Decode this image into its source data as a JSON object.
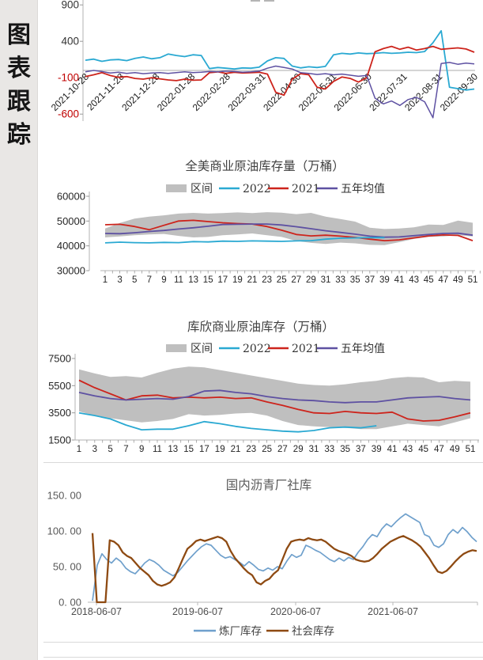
{
  "sidebar": {
    "title": "图表跟踪",
    "chars": [
      "图",
      "表",
      "跟",
      "踪"
    ]
  },
  "colors": {
    "band": "#bfbfbf",
    "cyan": "#2aa9d2",
    "red": "#cd241c",
    "purple": "#5e51a2",
    "blue": "#6fa0cc",
    "brown": "#8e4a12",
    "axis": "#b3b3b3",
    "tick_text": "#262626",
    "neg_tick_text": "#c00000",
    "gray_text": "#595959"
  },
  "chart_data": [
    {
      "type": "line",
      "title": "",
      "ylim": [
        -600,
        900
      ],
      "ytick_values": [
        900,
        400,
        -100,
        -600
      ],
      "ytick_labels": [
        "900",
        "400",
        "-100",
        "-600"
      ],
      "ytick_colors": [
        "#333333",
        "#333333",
        "#c00000",
        "#c00000"
      ],
      "baseline": 0,
      "xtick_labels": [
        "2021-10-28",
        "2021-11-28",
        "2021-12-28",
        "2022-01-28",
        "2022-02-28",
        "2022-03-31",
        "2022-04-30",
        "2022-05-31",
        "2022-06-30",
        "2022-07-31",
        "2022-08-31",
        "2022-09-30"
      ],
      "series": [
        {
          "name": "series-cyan",
          "color": "#2aa9d2",
          "width": 1.8,
          "values": [
            140,
            155,
            125,
            145,
            150,
            135,
            165,
            185,
            160,
            175,
            225,
            205,
            190,
            215,
            205,
            25,
            40,
            30,
            20,
            35,
            30,
            45,
            130,
            175,
            165,
            60,
            35,
            50,
            40,
            55,
            215,
            235,
            225,
            240,
            230,
            235,
            245,
            235,
            240,
            250,
            245,
            260,
            380,
            545,
            -230,
            -250,
            -270,
            -255
          ]
        },
        {
          "name": "series-red",
          "color": "#cd241c",
          "width": 1.8,
          "values": [
            -85,
            -60,
            -30,
            -70,
            -95,
            -85,
            -110,
            -120,
            -100,
            -115,
            -130,
            -140,
            -120,
            -135,
            -130,
            -30,
            -20,
            -40,
            -25,
            -35,
            -30,
            -25,
            -50,
            -300,
            -340,
            -120,
            -45,
            -60,
            -230,
            -255,
            -150,
            -90,
            -110,
            -160,
            -100,
            255,
            300,
            330,
            290,
            320,
            280,
            300,
            330,
            290,
            300,
            310,
            295,
            250
          ]
        },
        {
          "name": "series-purple",
          "color": "#5e51a2",
          "width": 1.5,
          "values": [
            -20,
            0,
            -15,
            -35,
            -25,
            -40,
            -30,
            -45,
            -35,
            -30,
            -40,
            -30,
            -20,
            -30,
            -25,
            -15,
            -20,
            -10,
            -15,
            -25,
            -20,
            -10,
            30,
            60,
            40,
            20,
            -30,
            -40,
            -55,
            -45,
            -60,
            -50,
            -65,
            -80,
            -70,
            -380,
            -460,
            -420,
            -480,
            -400,
            -370,
            -430,
            -650,
            95,
            110,
            85,
            100,
            90
          ]
        }
      ]
    },
    {
      "type": "band+line",
      "title": "全美商业原油库存量（万桶）",
      "legend": [
        "区间",
        "2022",
        "2021",
        "五年均值"
      ],
      "ylim": [
        30000,
        60000
      ],
      "ytick_values": [
        60000,
        50000,
        40000,
        30000
      ],
      "ytick_labels": [
        "60000",
        "50000",
        "40000",
        "30000"
      ],
      "xtick_labels": [
        "1",
        "3",
        "5",
        "7",
        "9",
        "11",
        "13",
        "15",
        "17",
        "19",
        "21",
        "23",
        "25",
        "27",
        "29",
        "31",
        "33",
        "35",
        "37",
        "39",
        "41",
        "43",
        "45",
        "47",
        "49",
        "51"
      ],
      "band": {
        "name": "区间",
        "color": "#bfbfbf",
        "upper": [
          47000,
          49200,
          51000,
          51800,
          52300,
          53000,
          53300,
          53000,
          53200,
          53500,
          53200,
          53600,
          53400,
          52800,
          53300,
          51800,
          50800,
          49800,
          47300,
          46800,
          47000,
          47500,
          48600,
          48400,
          50200,
          49300
        ],
        "lower": [
          43400,
          43800,
          44300,
          44600,
          44800,
          44000,
          43400,
          43600,
          44300,
          44600,
          45000,
          44300,
          43600,
          42000,
          41200,
          40800,
          41300,
          41000,
          40400,
          40300,
          41500,
          42800,
          43600,
          43800,
          44300,
          43800
        ]
      },
      "series": [
        {
          "name": "2021",
          "color": "#cd241c",
          "width": 1.8,
          "values": [
            48500,
            48700,
            47800,
            46500,
            48300,
            50000,
            50300,
            49800,
            49300,
            49000,
            48800,
            47800,
            46300,
            44600,
            44000,
            44300,
            43900,
            43400,
            42700,
            42100,
            42400,
            43200,
            44000,
            44400,
            44200,
            42100
          ]
        },
        {
          "name": "五年均值",
          "color": "#5e51a2",
          "width": 1.8,
          "values": [
            45000,
            44900,
            45300,
            45800,
            46200,
            46800,
            47300,
            47900,
            48600,
            48700,
            48800,
            48800,
            48400,
            47700,
            46900,
            46100,
            45400,
            44700,
            43900,
            43500,
            43600,
            44100,
            44600,
            45000,
            45100,
            44300
          ]
        },
        {
          "name": "2022",
          "color": "#2aa9d2",
          "width": 1.8,
          "values": [
            41200,
            41500,
            41300,
            41200,
            41400,
            41300,
            41700,
            41600,
            41900,
            41800,
            42000,
            41900,
            41800,
            42000,
            42100,
            42700,
            43100,
            43200,
            43300,
            43300,
            null,
            null,
            null,
            null,
            null,
            null
          ]
        }
      ]
    },
    {
      "type": "band+line",
      "title": "库欣商业原油库存（万桶）",
      "legend": [
        "区间",
        "2022",
        "2021",
        "五年均值"
      ],
      "ylim": [
        1500,
        7500
      ],
      "ytick_values": [
        7500,
        5500,
        3500,
        1500
      ],
      "ytick_labels": [
        "7500",
        "5500",
        "3500",
        "1500"
      ],
      "xtick_labels": [
        "1",
        "3",
        "5",
        "7",
        "9",
        "11",
        "13",
        "15",
        "17",
        "19",
        "21",
        "23",
        "25",
        "27",
        "29",
        "31",
        "33",
        "35",
        "37",
        "39",
        "41",
        "43",
        "45",
        "47",
        "49",
        "51"
      ],
      "band": {
        "name": "区间",
        "color": "#bfbfbf",
        "upper": [
          6700,
          6400,
          6150,
          6200,
          6100,
          6450,
          6750,
          6900,
          6850,
          6650,
          6450,
          6250,
          6050,
          5850,
          5650,
          5550,
          5500,
          5600,
          5750,
          5850,
          6050,
          6150,
          6100,
          5750,
          5850,
          5800
        ],
        "lower": [
          3600,
          3300,
          3100,
          2950,
          2800,
          2900,
          3050,
          3400,
          3300,
          3350,
          3450,
          3500,
          3300,
          2900,
          2600,
          2500,
          2450,
          2400,
          2300,
          2300,
          2500,
          2700,
          2600,
          2500,
          2800,
          3100
        ]
      },
      "series": [
        {
          "name": "2021",
          "color": "#cd241c",
          "width": 1.8,
          "values": [
            5900,
            5350,
            4900,
            4450,
            4750,
            4800,
            4600,
            4650,
            4600,
            4650,
            4550,
            4600,
            4300,
            4050,
            3750,
            3500,
            3450,
            3600,
            3500,
            3450,
            3550,
            3050,
            2900,
            2950,
            3200,
            3500
          ]
        },
        {
          "name": "五年均值",
          "color": "#5e51a2",
          "width": 1.8,
          "values": [
            5000,
            4750,
            4550,
            4450,
            4500,
            4550,
            4500,
            4700,
            5100,
            5150,
            5000,
            4900,
            4700,
            4550,
            4450,
            4400,
            4300,
            4250,
            4300,
            4300,
            4450,
            4600,
            4650,
            4700,
            4550,
            4450
          ]
        },
        {
          "name": "2022",
          "color": "#2aa9d2",
          "width": 1.8,
          "values": [
            3500,
            3300,
            3050,
            2600,
            2250,
            2300,
            2300,
            2550,
            2850,
            2700,
            2500,
            2350,
            2250,
            2150,
            2100,
            2200,
            2400,
            2450,
            2400,
            2550,
            null,
            null,
            null,
            null,
            null,
            null
          ]
        }
      ]
    },
    {
      "type": "line",
      "title": "国内沥青厂社库",
      "legend": [
        "炼厂库存",
        "社会库存"
      ],
      "ylim": [
        0,
        150
      ],
      "ytick_values": [
        150,
        100,
        50,
        0
      ],
      "ytick_labels": [
        "150. 00",
        "100. 00",
        "50. 00",
        "0. 00"
      ],
      "xtick_labels": [
        "2018-06-07",
        "2019-06-07",
        "2020-06-07",
        "2021-06-07"
      ],
      "series": [
        {
          "name": "炼厂库存",
          "color": "#6fa0cc",
          "width": 1.7,
          "values": [
            2,
            52,
            68,
            60,
            55,
            62,
            57,
            48,
            43,
            40,
            47,
            55,
            60,
            57,
            52,
            45,
            41,
            37,
            42,
            50,
            58,
            65,
            72,
            78,
            82,
            80,
            73,
            66,
            62,
            64,
            60,
            56,
            51,
            57,
            52,
            46,
            44,
            48,
            45,
            50,
            47,
            58,
            67,
            63,
            66,
            80,
            77,
            73,
            70,
            65,
            60,
            57,
            62,
            58,
            63,
            60,
            70,
            78,
            88,
            95,
            92,
            103,
            110,
            106,
            113,
            119,
            124,
            120,
            116,
            112,
            95,
            92,
            80,
            77,
            82,
            95,
            102,
            97,
            105,
            99,
            91,
            85
          ]
        },
        {
          "name": "社会库存",
          "color": "#8e4a12",
          "width": 2.3,
          "values": [
            97,
            0,
            0,
            0,
            87,
            85,
            80,
            70,
            65,
            62,
            55,
            48,
            43,
            38,
            30,
            25,
            23,
            25,
            28,
            35,
            48,
            62,
            75,
            80,
            86,
            88,
            86,
            88,
            90,
            92,
            90,
            85,
            72,
            62,
            55,
            48,
            42,
            38,
            28,
            25,
            30,
            33,
            40,
            45,
            60,
            75,
            85,
            87,
            88,
            87,
            90,
            88,
            87,
            88,
            85,
            80,
            75,
            72,
            70,
            68,
            65,
            60,
            58,
            57,
            58,
            62,
            68,
            75,
            80,
            85,
            88,
            91,
            93,
            90,
            87,
            83,
            78,
            70,
            62,
            52,
            43,
            41,
            44,
            50,
            57,
            63,
            68,
            71,
            73,
            72
          ]
        }
      ]
    }
  ]
}
